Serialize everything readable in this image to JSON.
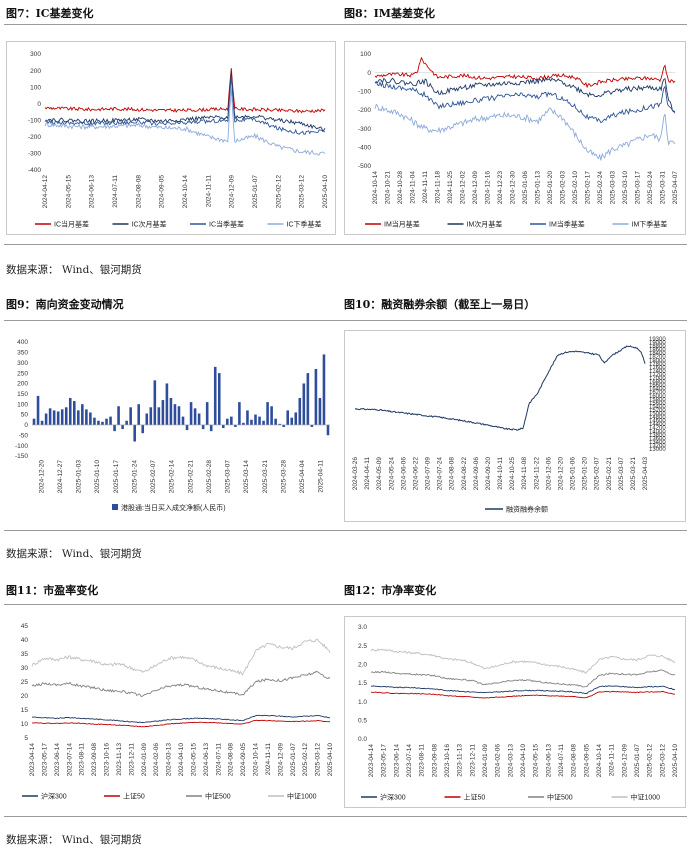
{
  "titles": {
    "fig7": "图7：IC基差变化",
    "fig8": "图8：IM基差变化",
    "fig9": "图9：南向资金变动情况",
    "fig10": "图10：融资融券余额（截至上一易日）",
    "fig11": "图11：市盈率变化",
    "fig12": "图12：市净率变化"
  },
  "source_1": "数据来源：  Wind、银河期货",
  "source_2": "数据来源：  Wind、银河期货",
  "source_3": "数据来源：  Wind、银河期货",
  "colors": {
    "dark_red": "#c00000",
    "navy": "#1f3864",
    "blue": "#2e5597",
    "light_blue": "#8eaadb",
    "gray": "#a6a6a6",
    "bar": "#2e4d9b",
    "rule": "#9a9a9a"
  },
  "chart_data": [
    {
      "id": "ic",
      "type": "line",
      "yticks": [
        "300",
        "200",
        "100",
        "0",
        "-100",
        "-200",
        "-300",
        "-400"
      ],
      "ylim": [
        -400,
        300
      ],
      "inverted": true,
      "xticks": [
        "2024-04-12",
        "2024-05-15",
        "2024-06-13",
        "2024-07-11",
        "2024-08-08",
        "2024-09-05",
        "2024-10-14",
        "2024-11-11",
        "2024-12-09",
        "2025-01-07",
        "2025-02-12",
        "2025-03-12",
        "2025-04-10"
      ],
      "n": 240,
      "series": [
        {
          "name": "IC当月基差",
          "color": "#c00000",
          "base": [
            -25,
            -30,
            -35,
            -30,
            -35,
            -40,
            -40,
            -35,
            -30,
            -35,
            -40,
            -45,
            -40
          ],
          "spike": [
            {
              "at": 0.665,
              "v": 220
            }
          ],
          "noise": 10
        },
        {
          "name": "IC次月基差",
          "color": "#1f3864",
          "base": [
            -95,
            -100,
            -105,
            -100,
            -95,
            -105,
            -95,
            -85,
            -80,
            -75,
            -100,
            -120,
            -160
          ],
          "spike": [
            {
              "at": 0.665,
              "v": 200
            }
          ],
          "noise": 12
        },
        {
          "name": "IC当季基差",
          "color": "#2e5597",
          "base": [
            -110,
            -115,
            -120,
            -115,
            -110,
            -125,
            -115,
            -105,
            -100,
            -95,
            -150,
            -175,
            -165
          ],
          "spike": [
            {
              "at": 0.665,
              "v": 170
            }
          ],
          "noise": 12
        },
        {
          "name": "IC下季基差",
          "color": "#8eaadb",
          "base": [
            -125,
            -135,
            -140,
            -135,
            -130,
            -145,
            -150,
            -200,
            -230,
            -195,
            -260,
            -290,
            -300
          ],
          "spike": [
            {
              "at": 0.665,
              "v": 100
            }
          ],
          "noise": 14
        }
      ]
    },
    {
      "id": "im",
      "type": "line",
      "yticks": [
        "100",
        "0",
        "-100",
        "-200",
        "-300",
        "-400",
        "-500"
      ],
      "ylim": [
        -500,
        100
      ],
      "inverted": true,
      "xticks": [
        "2024-10-14",
        "2024-10-21",
        "2024-10-28",
        "2024-11-04",
        "2024-11-11",
        "2024-11-18",
        "2024-11-25",
        "2024-12-02",
        "2024-12-09",
        "2024-12-16",
        "2024-12-23",
        "2024-12-30",
        "2025-01-06",
        "2025-01-13",
        "2025-01-20",
        "2025-02-03",
        "2025-02-10",
        "2025-02-17",
        "2025-02-24",
        "2025-03-03",
        "2025-03-10",
        "2025-03-17",
        "2025-03-24",
        "2025-03-31",
        "2025-04-07"
      ],
      "n": 240,
      "series": [
        {
          "name": "IM当月基差",
          "color": "#c00000",
          "base": [
            -20,
            -10,
            -10,
            -15,
            50,
            -25,
            -20,
            -15,
            -25,
            -30,
            -25,
            -20,
            -25,
            -30,
            -20,
            -15,
            -25,
            -70,
            -50,
            -40,
            -35,
            -30,
            -30,
            -40,
            -50
          ],
          "spike": [
            {
              "at": 0.155,
              "v": 80
            },
            {
              "at": 0.965,
              "v": 50
            }
          ],
          "noise": 10
        },
        {
          "name": "IM次月基差",
          "color": "#1f3864",
          "base": [
            -40,
            -40,
            -50,
            -60,
            -45,
            -110,
            -95,
            -80,
            -70,
            -65,
            -60,
            -55,
            -50,
            -45,
            -40,
            -50,
            -80,
            -115,
            -120,
            -100,
            -90,
            -85,
            -80,
            -90,
            -220
          ],
          "spike": [
            {
              "at": 0.965,
              "v": -20
            }
          ],
          "noise": 14
        },
        {
          "name": "IM当季基差",
          "color": "#2e5597",
          "base": [
            -60,
            -70,
            -80,
            -90,
            -120,
            -180,
            -170,
            -160,
            -150,
            -140,
            -130,
            -120,
            -120,
            -130,
            -110,
            -140,
            -180,
            -240,
            -260,
            -230,
            -210,
            -200,
            -180,
            -170,
            -210
          ],
          "spike": [
            {
              "at": 0.965,
              "v": -60
            }
          ],
          "noise": 14
        },
        {
          "name": "IM下季基差",
          "color": "#8eaadb",
          "base": [
            -180,
            -200,
            -220,
            -260,
            -300,
            -310,
            -290,
            -270,
            -250,
            -240,
            -230,
            -230,
            -240,
            -260,
            -200,
            -240,
            -330,
            -420,
            -460,
            -410,
            -390,
            -360,
            -330,
            -360,
            -380
          ],
          "spike": [
            {
              "at": 0.965,
              "v": -200
            }
          ],
          "noise": 18
        }
      ]
    },
    {
      "id": "south",
      "type": "bar",
      "yticks": [
        "400",
        "350",
        "300",
        "250",
        "200",
        "150",
        "100",
        "50",
        "0",
        "-50",
        "-100",
        "-150"
      ],
      "ylim": [
        -150,
        400
      ],
      "xticks": [
        "2024-12-20",
        "2024-12-27",
        "2025-01-03",
        "2025-01-10",
        "2025-01-17",
        "2025-01-24",
        "2025-02-07",
        "2025-02-14",
        "2025-02-21",
        "2025-02-28",
        "2025-03-07",
        "2025-03-14",
        "2025-03-21",
        "2025-03-28",
        "2025-04-04",
        "2025-04-11"
      ],
      "series_name": "港股通:当日买入成交净额(人民币)",
      "values": [
        30,
        140,
        20,
        55,
        80,
        70,
        65,
        75,
        85,
        130,
        115,
        70,
        100,
        75,
        60,
        35,
        20,
        15,
        30,
        40,
        -30,
        90,
        -20,
        20,
        85,
        -80,
        100,
        -40,
        55,
        85,
        215,
        85,
        120,
        200,
        130,
        100,
        90,
        40,
        -25,
        110,
        80,
        55,
        -20,
        110,
        -30,
        280,
        250,
        -15,
        30,
        40,
        -10,
        110,
        10,
        70,
        25,
        50,
        40,
        20,
        110,
        90,
        30,
        5,
        -10,
        70,
        35,
        60,
        130,
        200,
        250,
        -10,
        270,
        130,
        340,
        -50
      ]
    },
    {
      "id": "margin",
      "type": "line",
      "yticks": [
        "19300",
        "19000",
        "18800",
        "18600",
        "18400",
        "18200",
        "18000",
        "17800",
        "17600",
        "17400",
        "17200",
        "17000",
        "16800",
        "16600",
        "16400",
        "16200",
        "16000",
        "15800",
        "15600",
        "15400",
        "15200",
        "15000",
        "14800",
        "14600",
        "14400",
        "14200",
        "14000",
        "13800",
        "13600",
        "13400",
        "13200",
        "13000"
      ],
      "ylim": [
        13000,
        19300
      ],
      "xticks": [
        "2024-03-26",
        "2024-04-11",
        "2024-05-09",
        "2024-05-24",
        "2024-06-06",
        "2024-06-22",
        "2024-07-09",
        "2024-07-24",
        "2024-08-08",
        "2024-08-22",
        "2024-09-06",
        "2024-09-20",
        "2024-10-11",
        "2024-10-25",
        "2024-11-08",
        "2024-11-22",
        "2024-12-06",
        "2024-12-20",
        "2025-01-06",
        "2025-01-20",
        "2025-02-07",
        "2025-02-21",
        "2025-03-07",
        "2025-03-21",
        "2025-04-03"
      ],
      "series_name": "融资融券余额",
      "points": [
        [
          0,
          15300
        ],
        [
          0.08,
          15250
        ],
        [
          0.12,
          15150
        ],
        [
          0.2,
          15000
        ],
        [
          0.3,
          14800
        ],
        [
          0.38,
          14600
        ],
        [
          0.45,
          14400
        ],
        [
          0.52,
          14150
        ],
        [
          0.56,
          14100
        ],
        [
          0.58,
          14200
        ],
        [
          0.6,
          15600
        ],
        [
          0.63,
          16200
        ],
        [
          0.66,
          17200
        ],
        [
          0.7,
          18400
        ],
        [
          0.73,
          18550
        ],
        [
          0.76,
          18600
        ],
        [
          0.8,
          18500
        ],
        [
          0.84,
          18400
        ],
        [
          0.86,
          17900
        ],
        [
          0.88,
          18300
        ],
        [
          0.91,
          18600
        ],
        [
          0.94,
          18900
        ],
        [
          0.97,
          18800
        ],
        [
          0.985,
          18600
        ],
        [
          1.0,
          17900
        ]
      ],
      "noise": 40
    },
    {
      "id": "pe",
      "type": "line",
      "yticks": [
        "45",
        "40",
        "35",
        "30",
        "25",
        "20",
        "15",
        "10",
        "5"
      ],
      "ylim": [
        5,
        45
      ],
      "xticks": [
        "2023-04-14",
        "2023-05-17",
        "2023-06-14",
        "2023-07-14",
        "2023-08-11",
        "2023-09-08",
        "2023-10-16",
        "2023-11-13",
        "2023-12-11",
        "2024-01-09",
        "2024-02-06",
        "2024-03-13",
        "2024-04-10",
        "2024-05-15",
        "2024-06-13",
        "2024-07-11",
        "2024-08-08",
        "2024-09-05",
        "2024-10-14",
        "2024-11-11",
        "2024-12-09",
        "2025-01-07",
        "2025-02-12",
        "2025-03-12",
        "2025-04-10"
      ],
      "n": 260,
      "series": [
        {
          "name": "沪深300",
          "color": "#1f3864",
          "base": [
            12.5,
            12.2,
            12.0,
            12.3,
            12.0,
            11.8,
            11.5,
            11.2,
            10.8,
            10.5,
            11.0,
            11.5,
            11.8,
            12.0,
            12.0,
            11.8,
            11.5,
            11.2,
            13.0,
            13.0,
            12.8,
            12.5,
            12.8,
            13.0,
            12.2
          ],
          "noise": 0.15
        },
        {
          "name": "上证50",
          "color": "#c00000",
          "base": [
            10.5,
            10.3,
            10.2,
            10.4,
            10.2,
            10.0,
            9.8,
            9.6,
            9.3,
            9.0,
            9.5,
            10.0,
            10.3,
            10.5,
            10.6,
            10.4,
            10.2,
            10.0,
            11.3,
            11.2,
            11.0,
            10.9,
            11.0,
            11.2,
            10.8
          ],
          "noise": 0.12
        },
        {
          "name": "中证500",
          "color": "#808080",
          "base": [
            23.5,
            24.5,
            24.0,
            24.5,
            23.5,
            23.0,
            22.0,
            21.8,
            21.0,
            20.0,
            22.0,
            23.5,
            24.0,
            23.5,
            22.5,
            22.0,
            21.0,
            20.5,
            25.0,
            26.0,
            25.5,
            26.5,
            27.5,
            28.5,
            26.0
          ],
          "noise": 0.45
        },
        {
          "name": "中证1000",
          "color": "#bfbfbf",
          "base": [
            31.0,
            33.5,
            33.0,
            34.0,
            33.0,
            32.5,
            31.0,
            31.5,
            30.0,
            28.5,
            31.0,
            33.5,
            34.0,
            33.0,
            31.0,
            30.0,
            29.0,
            28.0,
            36.0,
            38.5,
            37.5,
            37.0,
            39.5,
            40.0,
            36.0
          ],
          "noise": 0.6
        }
      ]
    },
    {
      "id": "pb",
      "type": "line",
      "yticks": [
        "3.0",
        "2.5",
        "2.0",
        "1.5",
        "1.0",
        "0.5",
        "0.0"
      ],
      "ylim": [
        0,
        3
      ],
      "xticks": [
        "2023-04-14",
        "2023-05-17",
        "2023-06-14",
        "2023-07-14",
        "2023-08-11",
        "2023-09-08",
        "2023-10-16",
        "2023-11-13",
        "2023-12-11",
        "2024-01-09",
        "2024-02-06",
        "2024-03-13",
        "2024-04-10",
        "2024-05-15",
        "2024-06-13",
        "2024-07-11",
        "2024-08-08",
        "2024-09-05",
        "2024-10-14",
        "2024-11-11",
        "2024-12-09",
        "2025-01-07",
        "2025-02-12",
        "2025-03-12",
        "2025-04-10"
      ],
      "n": 260,
      "series": [
        {
          "name": "沪深300",
          "color": "#1f3864",
          "base": [
            1.42,
            1.4,
            1.38,
            1.38,
            1.36,
            1.34,
            1.3,
            1.28,
            1.26,
            1.24,
            1.26,
            1.28,
            1.3,
            1.3,
            1.29,
            1.28,
            1.26,
            1.22,
            1.4,
            1.42,
            1.4,
            1.38,
            1.4,
            1.41,
            1.32
          ],
          "noise": 0.012
        },
        {
          "name": "上证50",
          "color": "#c00000",
          "base": [
            1.26,
            1.24,
            1.22,
            1.22,
            1.21,
            1.2,
            1.16,
            1.14,
            1.12,
            1.1,
            1.12,
            1.14,
            1.16,
            1.17,
            1.16,
            1.15,
            1.14,
            1.1,
            1.26,
            1.27,
            1.26,
            1.25,
            1.26,
            1.27,
            1.2
          ],
          "noise": 0.01
        },
        {
          "name": "中证500",
          "color": "#808080",
          "base": [
            1.78,
            1.8,
            1.76,
            1.74,
            1.72,
            1.7,
            1.62,
            1.6,
            1.56,
            1.45,
            1.5,
            1.56,
            1.58,
            1.55,
            1.5,
            1.48,
            1.44,
            1.4,
            1.7,
            1.76,
            1.74,
            1.72,
            1.8,
            1.84,
            1.7
          ],
          "noise": 0.02
        },
        {
          "name": "中证1000",
          "color": "#bfbfbf",
          "base": [
            2.38,
            2.4,
            2.34,
            2.32,
            2.28,
            2.24,
            2.14,
            2.12,
            2.04,
            1.88,
            1.96,
            2.06,
            2.08,
            2.04,
            1.98,
            1.94,
            1.86,
            1.78,
            2.12,
            2.2,
            2.14,
            2.12,
            2.24,
            2.22,
            2.06
          ],
          "noise": 0.03
        }
      ]
    }
  ]
}
